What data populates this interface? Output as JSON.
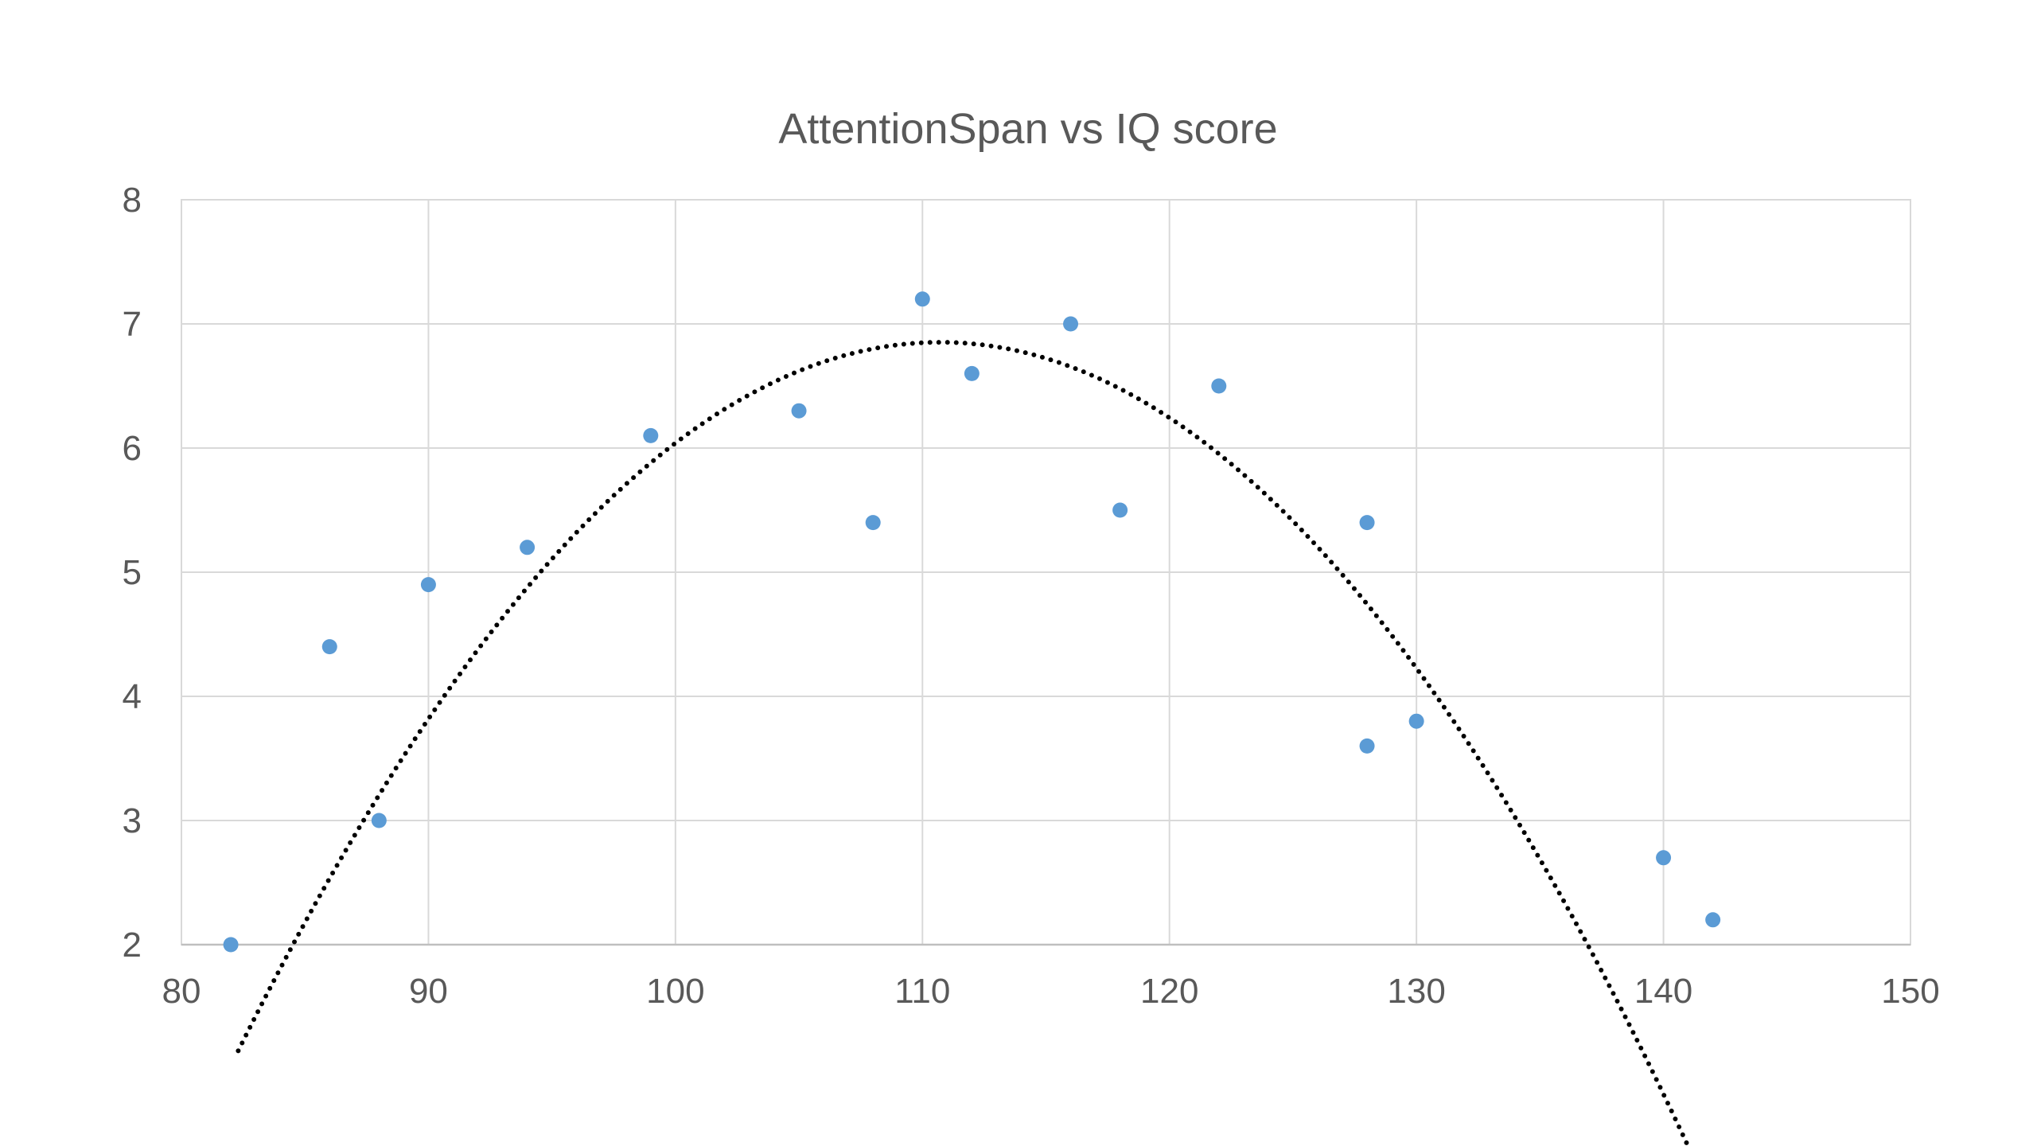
{
  "chart_data": {
    "type": "scatter",
    "title": "AttentionSpan vs IQ score",
    "xlabel": "",
    "ylabel": "",
    "xlim": [
      80,
      150
    ],
    "ylim": [
      2,
      8
    ],
    "x_ticks": [
      80,
      90,
      100,
      110,
      120,
      130,
      140,
      150
    ],
    "y_ticks": [
      2,
      3,
      4,
      5,
      6,
      7,
      8
    ],
    "grid": true,
    "legend": "none",
    "colors": {
      "points": "#5b9bd5",
      "trendline": "#000000",
      "grid": "#d9d9d9",
      "text": "#595959"
    },
    "series": [
      {
        "x": [
          82,
          86,
          88,
          90,
          94,
          99,
          105,
          108,
          110,
          112,
          116,
          118,
          122,
          128,
          128,
          130,
          140,
          142
        ],
        "y": [
          2.0,
          4.4,
          3.0,
          4.9,
          5.2,
          6.1,
          6.3,
          5.4,
          7.2,
          6.6,
          7.0,
          5.5,
          6.5,
          5.4,
          3.6,
          3.8,
          2.7,
          2.2
        ]
      }
    ],
    "trendline": {
      "type": "polynomial",
      "order": 2,
      "style": "dotted",
      "x_range": [
        82.3,
        141.2
      ],
      "coefficients": [
        -79.76,
        1.5645,
        -0.007065
      ]
    }
  }
}
